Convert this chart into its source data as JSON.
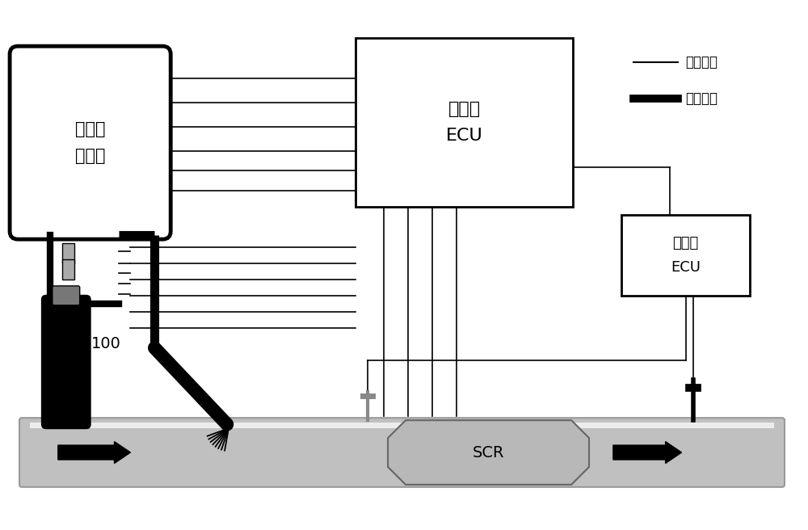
{
  "bg_color": "#ffffff",
  "text_color": "#000000",
  "box_urea_label": "尿素供\n给单元",
  "box_ecu_label": "发动机\nECU",
  "box_sensor_label": "传感器\nECU",
  "scr_label": "SCR",
  "label_100": "100",
  "legend_electric": "电器线路",
  "legend_urea": "尿素管路",
  "line_color": "#000000",
  "gray_color": "#c0c0c0",
  "scr_color": "#b8b8b8",
  "dark_gray": "#888888"
}
